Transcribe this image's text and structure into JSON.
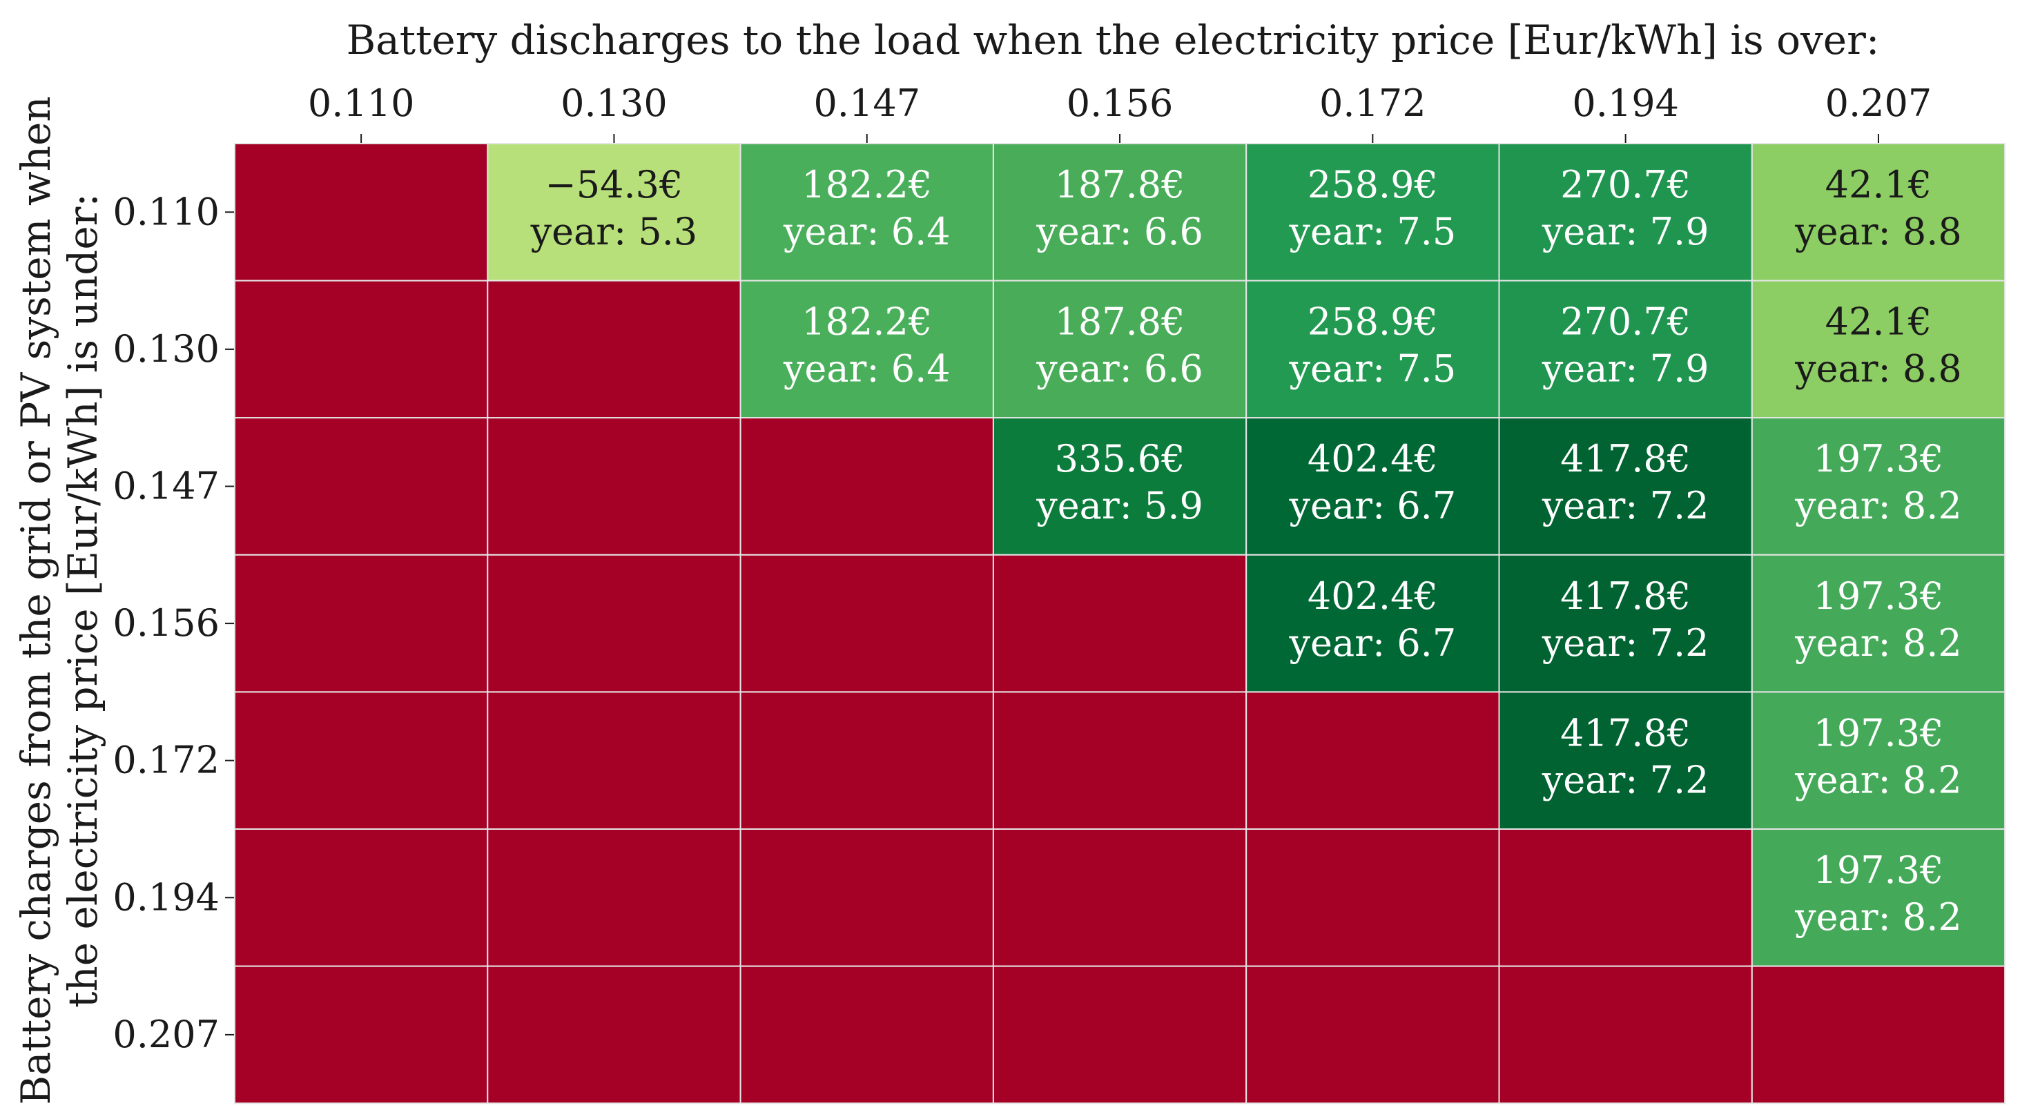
{
  "chart_data": {
    "type": "heatmap",
    "title": "Battery discharges to the load when the electricity price [Eur/kWh] is over:",
    "ylabel_line1": "Battery charges from the grid or PV system when",
    "ylabel_line2": "the electricity price [Eur/kWh] is under:",
    "x_categories": [
      "0.110",
      "0.130",
      "0.147",
      "0.156",
      "0.172",
      "0.194",
      "0.207"
    ],
    "y_categories": [
      "0.110",
      "0.130",
      "0.147",
      "0.156",
      "0.172",
      "0.194",
      "0.207"
    ],
    "cells": [
      [
        null,
        {
          "value": "−54.3€",
          "years": "year: 5.3",
          "color": "#b8e07a",
          "text_color": "#1a1a1a"
        },
        {
          "value": "182.2€",
          "years": "year: 6.4",
          "color": "#4aaf5b",
          "text_color": "#ffffff"
        },
        {
          "value": "187.8€",
          "years": "year: 6.6",
          "color": "#48ac58",
          "text_color": "#ffffff"
        },
        {
          "value": "258.9€",
          "years": "year: 7.5",
          "color": "#239a51",
          "text_color": "#ffffff"
        },
        {
          "value": "270.7€",
          "years": "year: 7.9",
          "color": "#1f9550",
          "text_color": "#ffffff"
        },
        {
          "value": "42.1€",
          "years": "year: 8.8",
          "color": "#8ccd64",
          "text_color": "#1a1a1a"
        }
      ],
      [
        null,
        null,
        {
          "value": "182.2€",
          "years": "year: 6.4",
          "color": "#4aaf5b",
          "text_color": "#ffffff"
        },
        {
          "value": "187.8€",
          "years": "year: 6.6",
          "color": "#48ac58",
          "text_color": "#ffffff"
        },
        {
          "value": "258.9€",
          "years": "year: 7.5",
          "color": "#239a51",
          "text_color": "#ffffff"
        },
        {
          "value": "270.7€",
          "years": "year: 7.9",
          "color": "#1f9550",
          "text_color": "#ffffff"
        },
        {
          "value": "42.1€",
          "years": "year: 8.8",
          "color": "#8ccd64",
          "text_color": "#1a1a1a"
        }
      ],
      [
        null,
        null,
        null,
        {
          "value": "335.6€",
          "years": "year: 5.9",
          "color": "#0c7c3c",
          "text_color": "#ffffff"
        },
        {
          "value": "402.4€",
          "years": "year: 6.7",
          "color": "#006835",
          "text_color": "#ffffff"
        },
        {
          "value": "417.8€",
          "years": "year: 7.2",
          "color": "#006331",
          "text_color": "#ffffff"
        },
        {
          "value": "197.3€",
          "years": "year: 8.2",
          "color": "#44aa5a",
          "text_color": "#ffffff"
        }
      ],
      [
        null,
        null,
        null,
        null,
        {
          "value": "402.4€",
          "years": "year: 6.7",
          "color": "#006835",
          "text_color": "#ffffff"
        },
        {
          "value": "417.8€",
          "years": "year: 7.2",
          "color": "#006331",
          "text_color": "#ffffff"
        },
        {
          "value": "197.3€",
          "years": "year: 8.2",
          "color": "#44aa5a",
          "text_color": "#ffffff"
        }
      ],
      [
        null,
        null,
        null,
        null,
        null,
        {
          "value": "417.8€",
          "years": "year: 7.2",
          "color": "#006331",
          "text_color": "#ffffff"
        },
        {
          "value": "197.3€",
          "years": "year: 8.2",
          "color": "#44aa5a",
          "text_color": "#ffffff"
        }
      ],
      [
        null,
        null,
        null,
        null,
        null,
        null,
        {
          "value": "197.3€",
          "years": "year: 8.2",
          "color": "#44aa5a",
          "text_color": "#ffffff"
        }
      ],
      [
        null,
        null,
        null,
        null,
        null,
        null,
        null
      ]
    ],
    "empty_color": "#a50026",
    "grid_color": "#e6e6e6",
    "grid": true
  }
}
